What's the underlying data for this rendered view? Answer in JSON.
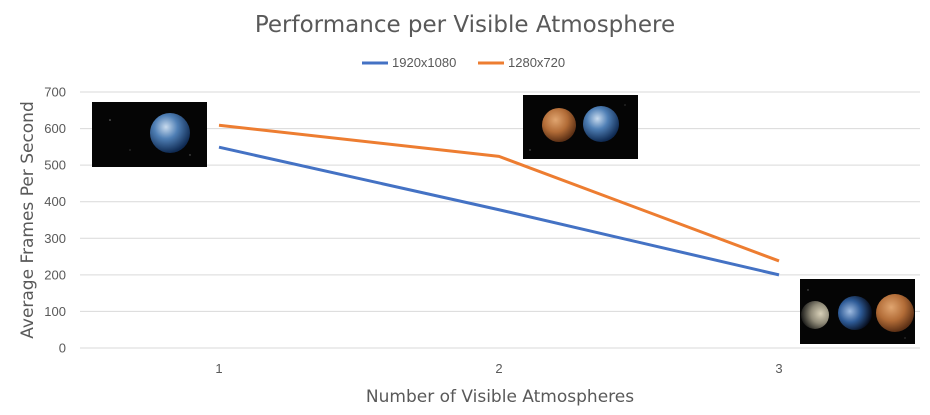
{
  "chart_data": {
    "type": "line",
    "title": "Performance per Visible Atmosphere",
    "xlabel": "Number of Visible Atmospheres",
    "ylabel": "Average Frames Per Second",
    "x": [
      1,
      2,
      3
    ],
    "x_tick_labels": [
      "1",
      "2",
      "3"
    ],
    "ylim": [
      0,
      700
    ],
    "y_ticks": [
      0,
      100,
      200,
      300,
      400,
      500,
      600,
      700
    ],
    "grid": true,
    "legend_position": "top",
    "series": [
      {
        "name": "1920x1080",
        "color": "#4472c4",
        "values": [
          549,
          378,
          200
        ]
      },
      {
        "name": "1280x720",
        "color": "#ed7d31",
        "values": [
          609,
          524,
          238
        ]
      }
    ],
    "annotations": [
      {
        "type": "image",
        "depicts": "Earth",
        "near_x": 1
      },
      {
        "type": "image",
        "depicts": "Mars and Earth",
        "near_x": 2
      },
      {
        "type": "image",
        "depicts": "Moon, Earth and Mars",
        "near_x": 3
      }
    ]
  }
}
